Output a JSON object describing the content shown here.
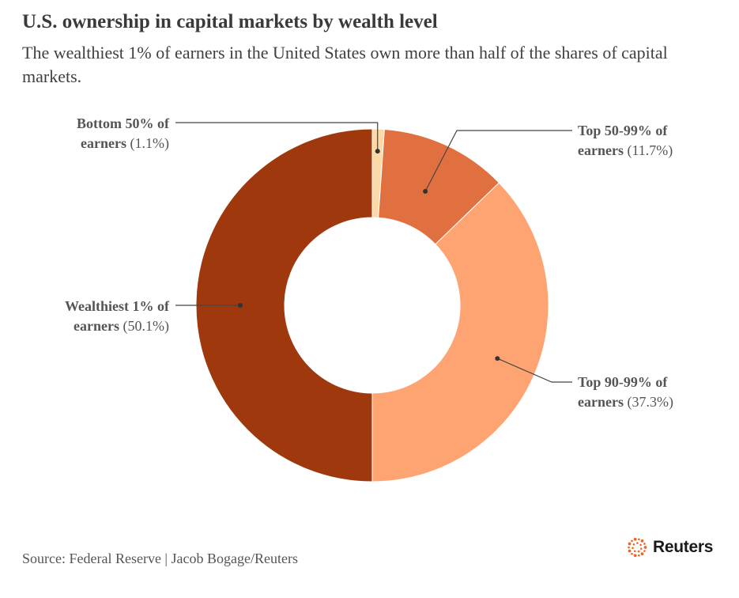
{
  "header": {
    "title": "U.S. ownership in capital markets by wealth level",
    "subtitle": "The wealthiest 1% of earners in the United States own more than half of the shares of capital markets."
  },
  "chart_data": {
    "type": "pie",
    "variant": "donut",
    "title": "U.S. ownership in capital markets by wealth level",
    "subtitle": "The wealthiest 1% of earners in the United States own more than half of the shares of capital markets.",
    "unit": "%",
    "slices": [
      {
        "label_bold_1": "Bottom 50% of",
        "label_bold_2": "earners",
        "value": 1.1,
        "value_text": "(1.1%)",
        "color": "#fcd9a8"
      },
      {
        "label_bold_1": "Top 50-99% of",
        "label_bold_2": "earners",
        "value": 11.7,
        "value_text": "(11.7%)",
        "color": "#e0703f"
      },
      {
        "label_bold_1": "Top 90-99% of",
        "label_bold_2": "earners",
        "value": 37.3,
        "value_text": "(37.3%)",
        "color": "#fea472"
      },
      {
        "label_bold_1": "Wealthiest 1% of",
        "label_bold_2": "earners",
        "value": 50.1,
        "value_text": "(50.1%)",
        "color": "#a0380e"
      }
    ]
  },
  "footer": {
    "source": "Source: Federal Reserve | Jacob Bogage/Reuters",
    "logo_text": "Reuters",
    "logo_icon": "reuters-dot-ring-icon",
    "logo_color": "#f26522"
  }
}
